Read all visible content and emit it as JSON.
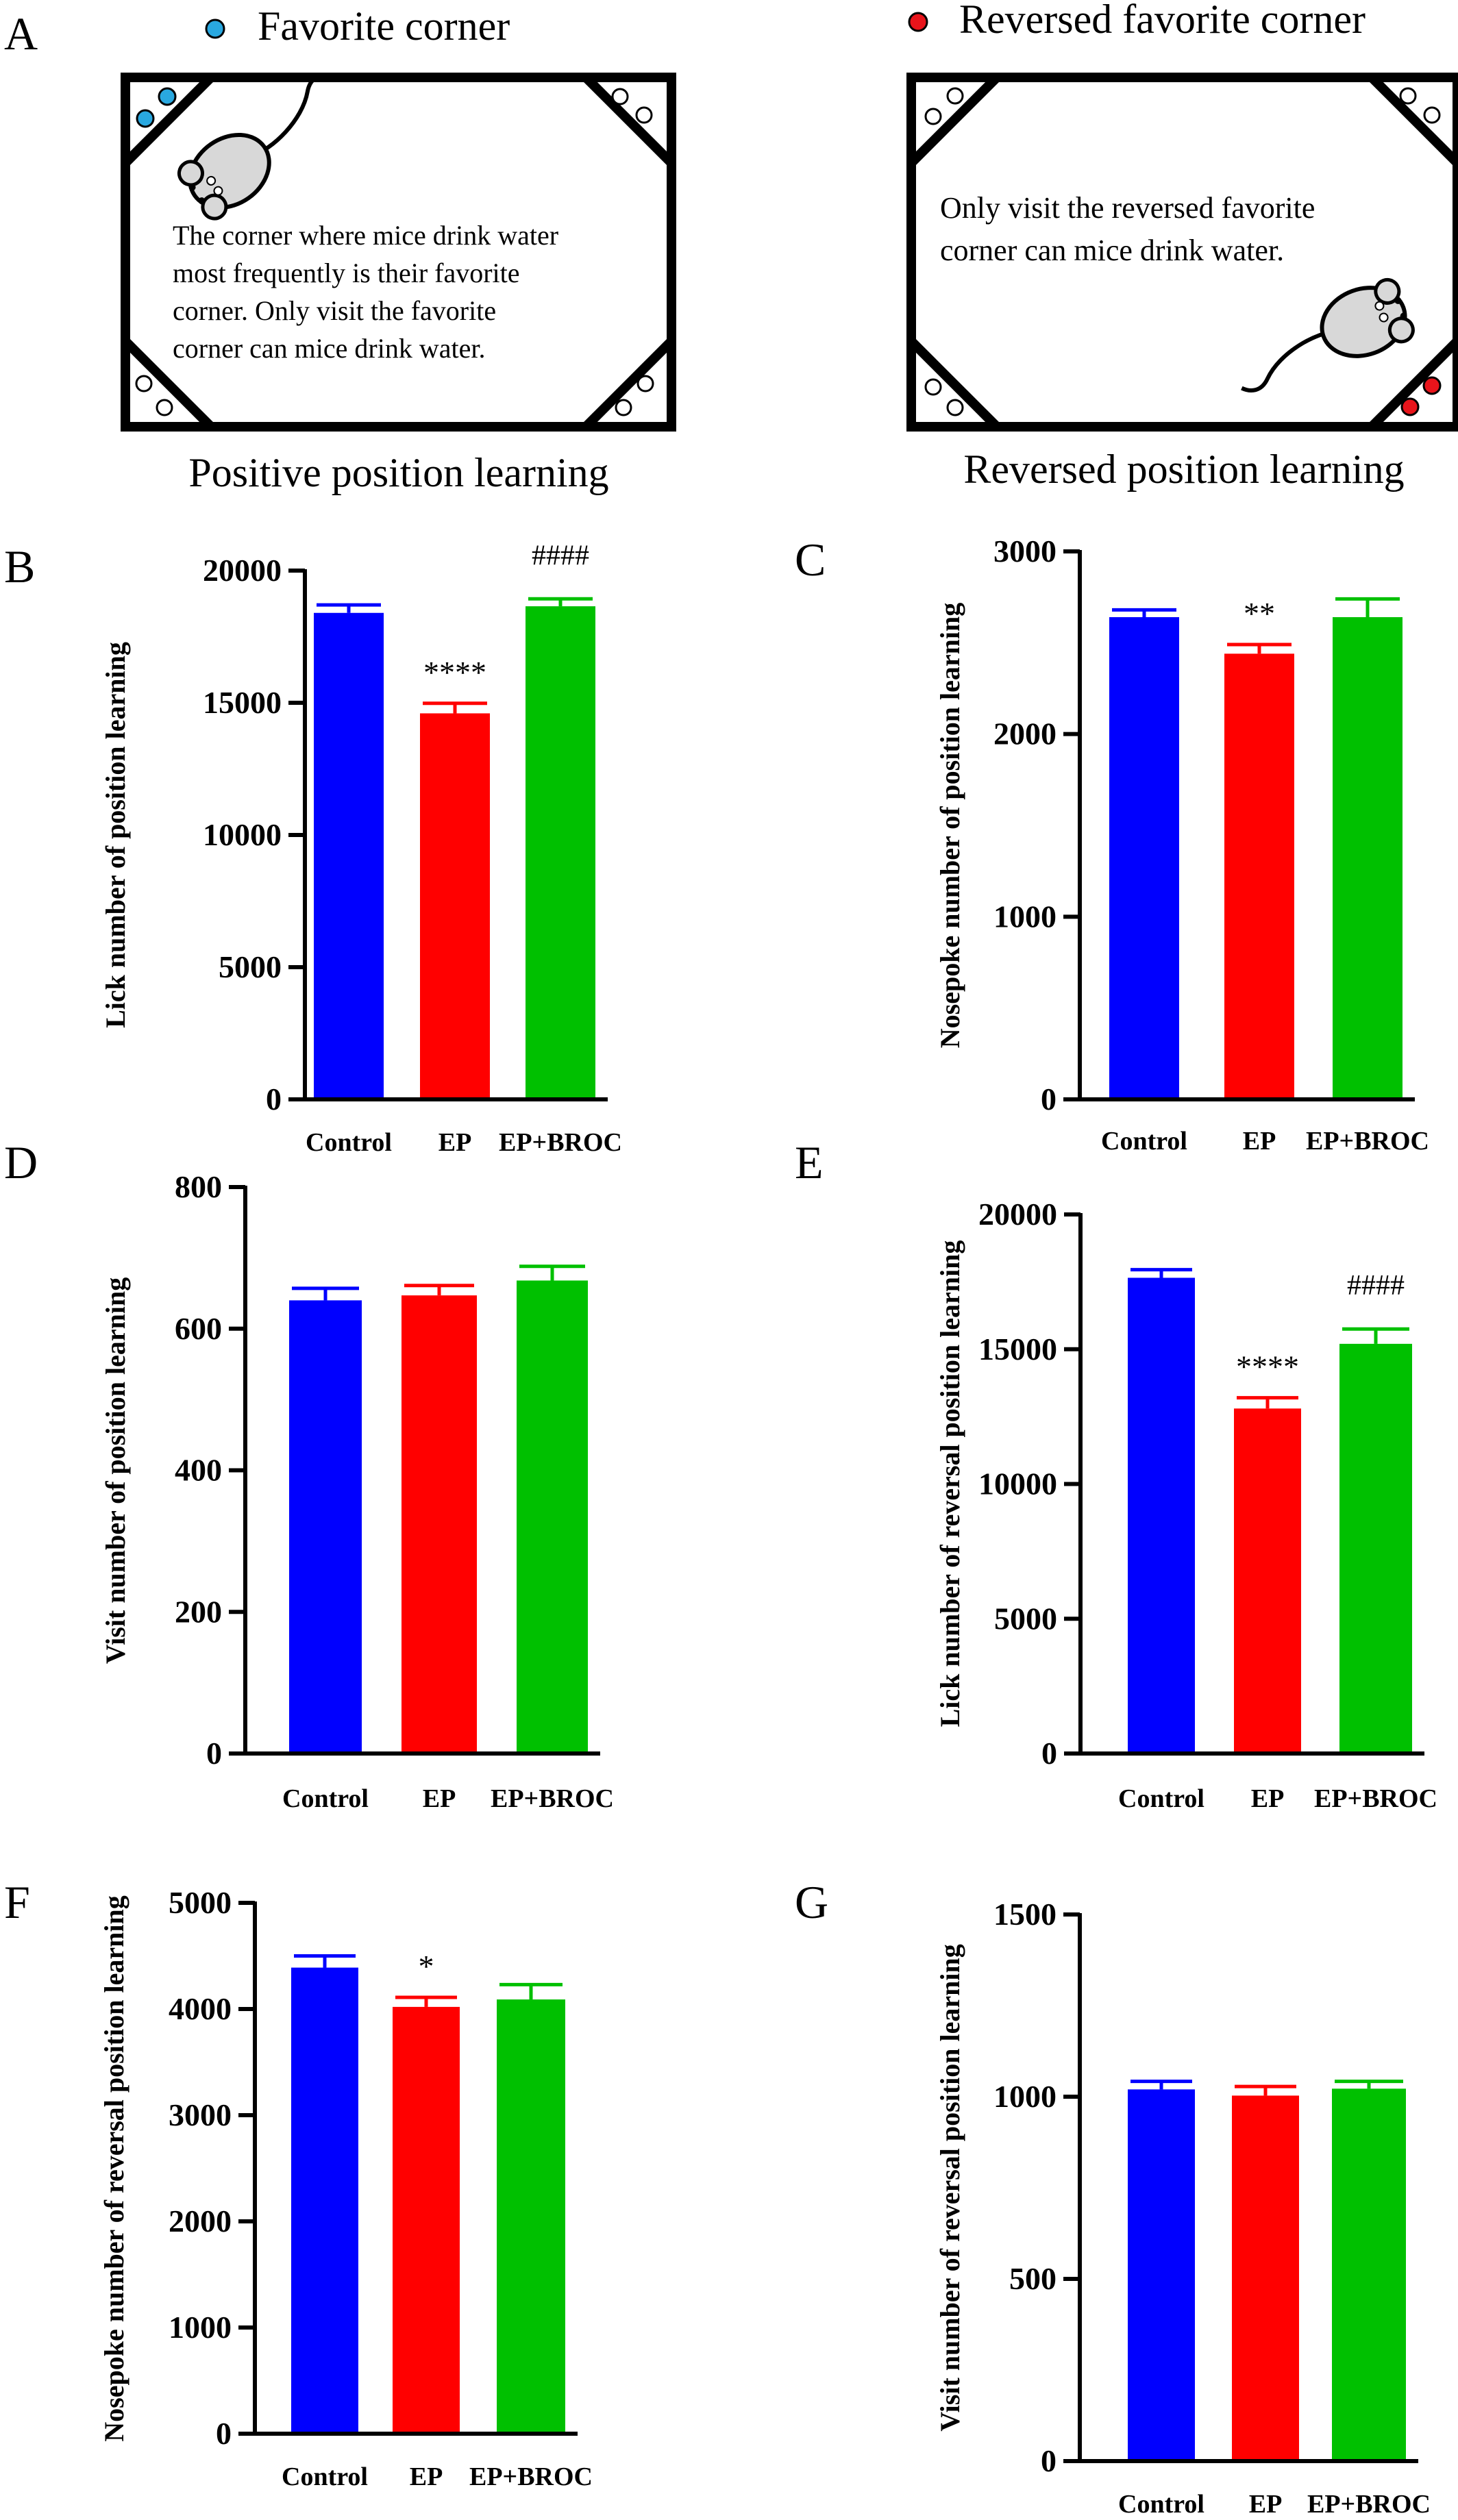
{
  "colors": {
    "control": "#0000FF",
    "ep": "#FF0000",
    "ep_broc": "#00C000",
    "favorite_dot": "#29A8E0",
    "reversed_dot": "#E8141B",
    "mouse_body": "#D8D8D8"
  },
  "panel_letters": {
    "a": "A",
    "b": "B",
    "c": "C",
    "d": "D",
    "e": "E",
    "f": "F",
    "g": "G"
  },
  "panel_a": {
    "left": {
      "legend_text": "Favorite corner",
      "description_lines": [
        "The corner where mice drink water",
        "most frequently is their favorite",
        "corner. Only visit the favorite",
        "corner can mice drink water."
      ],
      "caption": "Positive position learning"
    },
    "right": {
      "legend_text": "Reversed favorite corner",
      "description_lines": [
        "Only visit the reversed favorite",
        "corner can mice drink water."
      ],
      "caption": "Reversed position learning"
    }
  },
  "chart_data": [
    {
      "panel": "B",
      "type": "bar",
      "categories": [
        "Control",
        "EP",
        "EP+BROC"
      ],
      "values": [
        18400,
        14600,
        18650
      ],
      "errors": [
        300,
        380,
        280
      ],
      "annotations": [
        "",
        "****",
        "####"
      ],
      "ylabel": "Lick number of position learning",
      "ylim": [
        0,
        20000
      ],
      "yticks": [
        0,
        5000,
        10000,
        15000,
        20000
      ]
    },
    {
      "panel": "C",
      "type": "bar",
      "categories": [
        "Control",
        "EP",
        "EP+BROC"
      ],
      "values": [
        2640,
        2440,
        2640
      ],
      "errors": [
        40,
        50,
        100
      ],
      "annotations": [
        "",
        "**",
        ""
      ],
      "ylabel": "Nosepoke number of position learning",
      "ylim": [
        0,
        3000
      ],
      "yticks": [
        0,
        1000,
        2000,
        3000
      ]
    },
    {
      "panel": "D",
      "type": "bar",
      "categories": [
        "Control",
        "EP",
        "EP+BROC"
      ],
      "values": [
        640,
        647,
        668
      ],
      "errors": [
        17,
        14,
        20
      ],
      "annotations": [
        "",
        "",
        ""
      ],
      "ylabel": "Visit number of position learning",
      "ylim": [
        0,
        800
      ],
      "yticks": [
        0,
        200,
        400,
        600,
        800
      ]
    },
    {
      "panel": "E",
      "type": "bar",
      "categories": [
        "Control",
        "EP",
        "EP+BROC"
      ],
      "values": [
        17650,
        12800,
        15200
      ],
      "errors": [
        300,
        400,
        550
      ],
      "annotations": [
        "",
        "****",
        "####"
      ],
      "ylabel": "Lick number of reversal position learning",
      "ylim": [
        0,
        20000
      ],
      "yticks": [
        0,
        5000,
        10000,
        15000,
        20000
      ]
    },
    {
      "panel": "F",
      "type": "bar",
      "categories": [
        "Control",
        "EP",
        "EP+BROC"
      ],
      "values": [
        4390,
        4020,
        4090
      ],
      "errors": [
        110,
        90,
        140
      ],
      "annotations": [
        "",
        "*",
        ""
      ],
      "ylabel": "Nosepoke number of reversal position learning",
      "ylim": [
        0,
        5000
      ],
      "yticks": [
        0,
        1000,
        2000,
        3000,
        4000,
        5000
      ]
    },
    {
      "panel": "G",
      "type": "bar",
      "categories": [
        "Control",
        "EP",
        "EP+BROC"
      ],
      "values": [
        1020,
        1003,
        1022
      ],
      "errors": [
        22,
        25,
        20
      ],
      "annotations": [
        "",
        "",
        ""
      ],
      "ylabel": "Visit number of reversal position learning",
      "ylim": [
        0,
        1500
      ],
      "yticks": [
        0,
        500,
        1000,
        1500
      ]
    }
  ]
}
